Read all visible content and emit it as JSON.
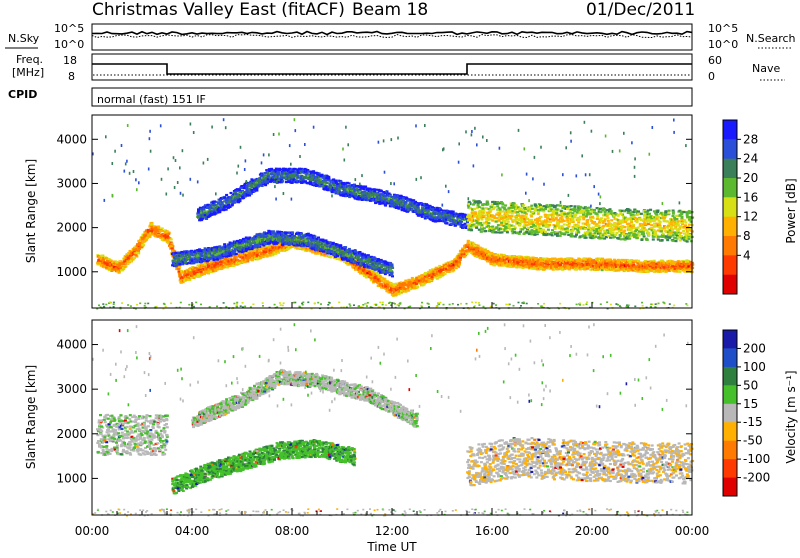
{
  "header": {
    "title": "Christmas Valley East (fitACF)",
    "beam": "Beam 18",
    "date": "01/Dec/2011"
  },
  "noise_panel": {
    "label": "N.Sky",
    "left_ticks": [
      "10^5",
      "10^0"
    ],
    "right_ticks": [
      "10^5",
      "10^0"
    ],
    "right_label": "N.Search"
  },
  "freq_panel": {
    "label_line1": "Freq.",
    "label_line2": "[MHz]",
    "left_ticks": [
      "18",
      "8"
    ],
    "right_ticks": [
      "60",
      "0"
    ],
    "right_label": "Nave"
  },
  "cpid_panel": {
    "label": "CPID",
    "text": "normal (fast) 151 IF"
  },
  "power_panel": {
    "ylabel": "Slant Range [km]",
    "colorbar_label": "Power [dB]",
    "colorbar_ticks": [
      "28",
      "24",
      "20",
      "16",
      "12",
      "8",
      "4"
    ],
    "colors": [
      "#1a1aff",
      "#2b4fd8",
      "#3a7f5a",
      "#5cb82e",
      "#d7e014",
      "#ffb000",
      "#ff7a00",
      "#ff3a00",
      "#e00000"
    ]
  },
  "velocity_panel": {
    "ylabel": "Slant Range [km]",
    "colorbar_label": "Velocity [m s⁻¹]",
    "colorbar_ticks": [
      "200",
      "100",
      "50",
      "15",
      "-15",
      "-50",
      "-100",
      "-200"
    ],
    "colors": [
      "#1a1aa8",
      "#1f4fc8",
      "#2f7f3f",
      "#45c02a",
      "#b8b8b8",
      "#ffb000",
      "#ff7a00",
      "#ff3a00",
      "#e00000"
    ]
  },
  "xaxis": {
    "label": "Time UT",
    "ticks": [
      "00:00",
      "04:00",
      "08:00",
      "12:00",
      "16:00",
      "20:00",
      "00:00"
    ]
  },
  "chart_data": {
    "type": "heatmap",
    "x_range_hours": [
      0,
      24
    ],
    "y_ticks": [
      1000,
      2000,
      3000,
      4000
    ],
    "ylim": [
      180,
      4550
    ],
    "frequency_mhz": {
      "segments": [
        {
          "start_hour": 0,
          "end_hour": 3,
          "value": 15
        },
        {
          "start_hour": 3,
          "end_hour": 15,
          "value": 10
        },
        {
          "start_hour": 15,
          "end_hour": 24,
          "value": 15
        }
      ]
    },
    "power_bands": [
      {
        "name": "low-range",
        "path": [
          [
            0.2,
            1300
          ],
          [
            1.0,
            1100
          ],
          [
            1.7,
            1500
          ],
          [
            2.3,
            2000
          ],
          [
            3.0,
            1800
          ],
          [
            3.5,
            900
          ],
          [
            5,
            1200
          ],
          [
            7,
            1500
          ],
          [
            8,
            1700
          ],
          [
            10,
            1400
          ],
          [
            11,
            1000
          ],
          [
            12,
            600
          ],
          [
            13,
            800
          ],
          [
            14.5,
            1200
          ],
          [
            15,
            1600
          ],
          [
            16,
            1300
          ],
          [
            18,
            1200
          ],
          [
            20,
            1200
          ],
          [
            22,
            1150
          ],
          [
            24,
            1150
          ]
        ],
        "width_km": 260,
        "level_db": 26
      },
      {
        "name": "mid-arc",
        "path": [
          [
            3.2,
            1300
          ],
          [
            5,
            1450
          ],
          [
            7,
            1800
          ],
          [
            8.5,
            1750
          ],
          [
            10,
            1450
          ],
          [
            12,
            1050
          ]
        ],
        "width_km": 300,
        "level_db": 12
      },
      {
        "name": "upper-arc",
        "path": [
          [
            4.2,
            2300
          ],
          [
            5.5,
            2650
          ],
          [
            7,
            3200
          ],
          [
            8.5,
            3200
          ],
          [
            10,
            2900
          ],
          [
            12,
            2650
          ],
          [
            13.5,
            2350
          ],
          [
            15,
            2150
          ]
        ],
        "width_km": 320,
        "level_db": 11
      },
      {
        "name": "tail",
        "path": [
          [
            15,
            2300
          ],
          [
            18,
            2200
          ],
          [
            21,
            2100
          ],
          [
            24,
            2050
          ]
        ],
        "width_km": 700,
        "level_db": 20
      }
    ],
    "velocity_bands": [
      {
        "name": "green-arc",
        "path": [
          [
            3.2,
            850
          ],
          [
            4.5,
            1150
          ],
          [
            6,
            1400
          ],
          [
            7.5,
            1650
          ],
          [
            9,
            1700
          ],
          [
            10.5,
            1500
          ]
        ],
        "width_km": 380,
        "value_ms": 40
      },
      {
        "name": "grey-arc",
        "path": [
          [
            4,
            2300
          ],
          [
            6,
            2800
          ],
          [
            7.5,
            3300
          ],
          [
            9,
            3200
          ],
          [
            11,
            2900
          ],
          [
            13,
            2300
          ]
        ],
        "width_km": 320,
        "value_ms": 5
      },
      {
        "name": "grey-left",
        "path": [
          [
            0.2,
            2000
          ],
          [
            1.5,
            2000
          ],
          [
            3,
            2000
          ]
        ],
        "width_km": 900,
        "value_ms": 5
      },
      {
        "name": "grey-tail",
        "path": [
          [
            15,
            1300
          ],
          [
            17,
            1500
          ],
          [
            20,
            1400
          ],
          [
            24,
            1350
          ]
        ],
        "width_km": 900,
        "value_ms": -5
      }
    ]
  }
}
